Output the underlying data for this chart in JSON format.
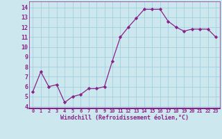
{
  "x": [
    0,
    1,
    2,
    3,
    4,
    5,
    6,
    7,
    8,
    9,
    10,
    11,
    12,
    13,
    14,
    15,
    16,
    17,
    18,
    19,
    20,
    21,
    22,
    23
  ],
  "y": [
    5.5,
    7.5,
    6.0,
    6.2,
    4.4,
    5.0,
    5.2,
    5.8,
    5.8,
    6.0,
    8.6,
    11.0,
    12.0,
    12.9,
    13.8,
    13.8,
    13.8,
    12.6,
    12.0,
    11.6,
    11.8,
    11.8,
    11.8,
    11.0
  ],
  "line_color": "#882288",
  "marker": "D",
  "marker_size": 2.2,
  "bg_color": "#cce8ee",
  "grid_color": "#99ccdd",
  "xlabel": "Windchill (Refroidissement éolien,°C)",
  "xlabel_color": "#882288",
  "yticks": [
    4,
    5,
    6,
    7,
    8,
    9,
    10,
    11,
    12,
    13,
    14
  ],
  "xlim": [
    -0.5,
    23.5
  ],
  "ylim": [
    3.8,
    14.6
  ],
  "tick_label_color": "#882288",
  "spine_color": "#882288",
  "spine_bottom_color": "#882288"
}
